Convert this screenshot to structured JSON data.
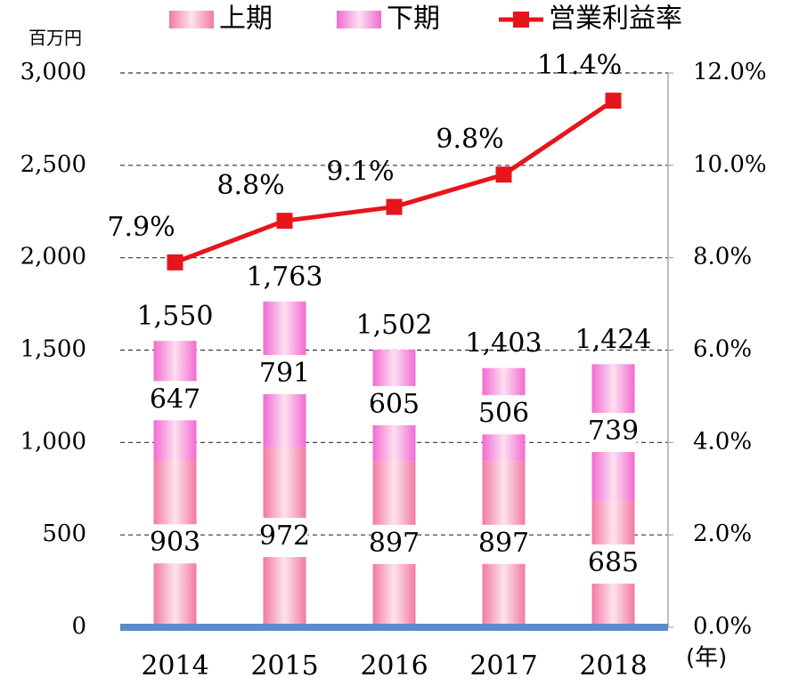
{
  "chart_data": {
    "type": "bar",
    "stacked": true,
    "ylabel": "百万円",
    "xlabel": "(年)",
    "categories": [
      "2014",
      "2015",
      "2016",
      "2017",
      "2018"
    ],
    "series": [
      {
        "name": "上期",
        "color": "#f27aa4",
        "values": [
          903,
          972,
          897,
          897,
          685
        ]
      },
      {
        "name": "下期",
        "color": "#f26ad2",
        "values": [
          647,
          791,
          605,
          506,
          739
        ]
      },
      {
        "name": "営業利益率",
        "type": "line",
        "axis": "y2",
        "color": "#e8141c",
        "values": [
          7.9,
          8.8,
          9.1,
          9.8,
          11.4
        ],
        "value_labels": [
          "7.9%",
          "8.8%",
          "9.1%",
          "9.8%",
          "11.4%"
        ]
      }
    ],
    "totals": [
      1550,
      1763,
      1502,
      1403,
      1424
    ],
    "total_labels": [
      "1,550",
      "1,763",
      "1,502",
      "1,403",
      "1,424"
    ],
    "ylim": [
      0,
      3000
    ],
    "yticks": [
      0,
      500,
      {
        "value": 1000,
        "label": "1,000"
      },
      {
        "value": 1500,
        "label": "1,500"
      },
      {
        "value": 2000,
        "label": "2,000"
      },
      {
        "value": 2500,
        "label": "2,500"
      },
      {
        "value": 3000,
        "label": "3,000"
      }
    ],
    "y2lim": [
      0,
      12
    ],
    "y2ticks": [
      {
        "value": 0,
        "label": "0.0%"
      },
      {
        "value": 2,
        "label": "2.0%"
      },
      {
        "value": 4,
        "label": "4.0%"
      },
      {
        "value": 6,
        "label": "6.0%"
      },
      {
        "value": 8,
        "label": "8.0%"
      },
      {
        "value": 10,
        "label": "10.0%"
      },
      {
        "value": 12,
        "label": "12.0%"
      }
    ],
    "grid": true,
    "legend": "top"
  }
}
